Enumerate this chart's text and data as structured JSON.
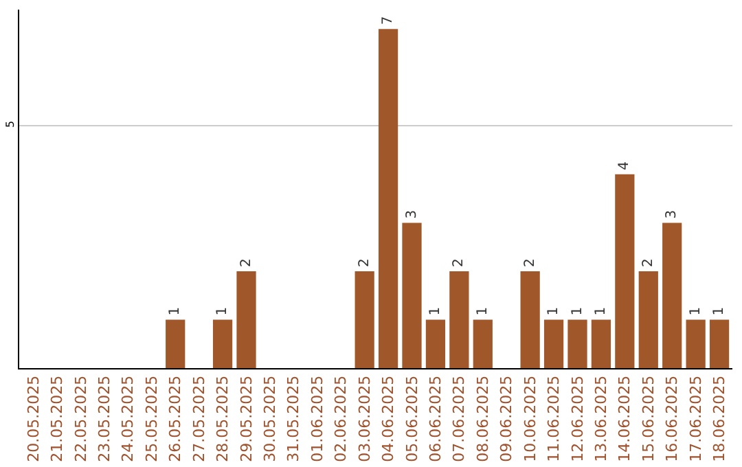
{
  "chart_data": {
    "type": "bar",
    "categories": [
      "20.05.2025",
      "21.05.2025",
      "22.05.2025",
      "23.05.2025",
      "24.05.2025",
      "25.05.2025",
      "26.05.2025",
      "27.05.2025",
      "28.05.2025",
      "29.05.2025",
      "30.05.2025",
      "31.05.2025",
      "01.06.2025",
      "02.06.2025",
      "03.06.2025",
      "04.06.2025",
      "05.06.2025",
      "06.06.2025",
      "07.06.2025",
      "08.06.2025",
      "09.06.2025",
      "10.06.2025",
      "11.06.2025",
      "12.06.2025",
      "13.06.2025",
      "14.06.2025",
      "15.06.2025",
      "16.06.2025",
      "17.06.2025",
      "18.06.2025"
    ],
    "values": [
      0,
      0,
      0,
      0,
      0,
      0,
      1,
      0,
      1,
      2,
      0,
      0,
      0,
      0,
      2,
      7,
      3,
      1,
      2,
      1,
      0,
      2,
      1,
      1,
      1,
      4,
      2,
      3,
      1,
      1
    ],
    "value_labels": [
      null,
      null,
      null,
      null,
      null,
      null,
      "1",
      null,
      "1",
      "2",
      null,
      null,
      null,
      null,
      "2",
      "7",
      "3",
      "1",
      "2",
      "1",
      null,
      "2",
      "1",
      "1",
      "1",
      "4",
      "2",
      "3",
      "1",
      "1"
    ],
    "color": "#a0572a",
    "ylim": [
      0,
      7.4
    ],
    "yticks": [
      5
    ],
    "grid": "y"
  }
}
